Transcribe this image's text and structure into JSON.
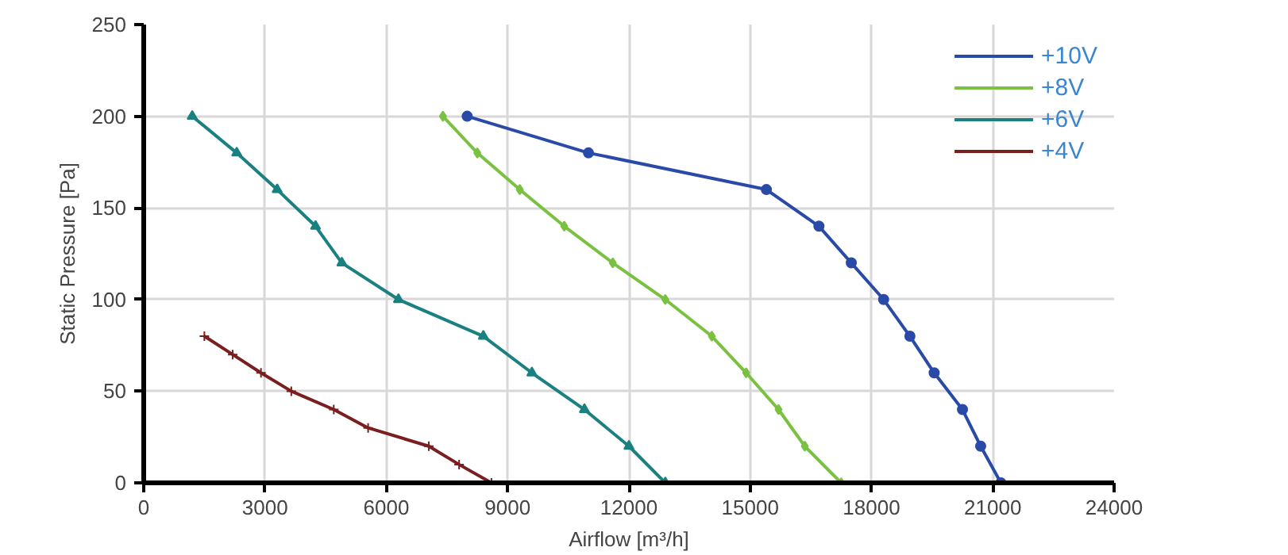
{
  "chart_data": {
    "type": "line",
    "xlabel": "Airflow [m³/h]",
    "ylabel": "Static Pressure [Pa]",
    "xlim": [
      0,
      24000
    ],
    "ylim": [
      0,
      250
    ],
    "xticks": [
      0,
      3000,
      6000,
      9000,
      12000,
      15000,
      18000,
      21000,
      24000
    ],
    "yticks": [
      0,
      50,
      100,
      150,
      200,
      250
    ],
    "grid": true,
    "legend": "top right",
    "series": [
      {
        "name": "+10V",
        "color": "#2a4aa8",
        "marker": "circle",
        "x": [
          8000,
          11000,
          15400,
          16700,
          17500,
          18300,
          18950,
          19550,
          20250,
          20700,
          21200
        ],
        "values": [
          200,
          180,
          160,
          140,
          120,
          100,
          80,
          60,
          40,
          20,
          0
        ]
      },
      {
        "name": "+8V",
        "color": "#7ac142",
        "marker": "diamond",
        "x": [
          7400,
          8250,
          9300,
          10400,
          11600,
          12900,
          14050,
          14900,
          15700,
          16350,
          17250
        ],
        "values": [
          200,
          180,
          160,
          140,
          120,
          100,
          80,
          60,
          40,
          20,
          0
        ]
      },
      {
        "name": "+6V",
        "color": "#1a8080",
        "marker": "triangle",
        "x": [
          1200,
          2300,
          3300,
          4250,
          4900,
          6300,
          8400,
          9600,
          10900,
          12000,
          12900
        ],
        "values": [
          200,
          180,
          160,
          140,
          120,
          100,
          80,
          60,
          40,
          20,
          0
        ]
      },
      {
        "name": "+4V",
        "color": "#7a1f1f",
        "marker": "cross",
        "x": [
          1500,
          2200,
          2900,
          3650,
          4700,
          5550,
          7050,
          7800,
          8600
        ],
        "values": [
          80,
          70,
          60,
          50,
          40,
          30,
          20,
          10,
          0
        ]
      }
    ]
  }
}
